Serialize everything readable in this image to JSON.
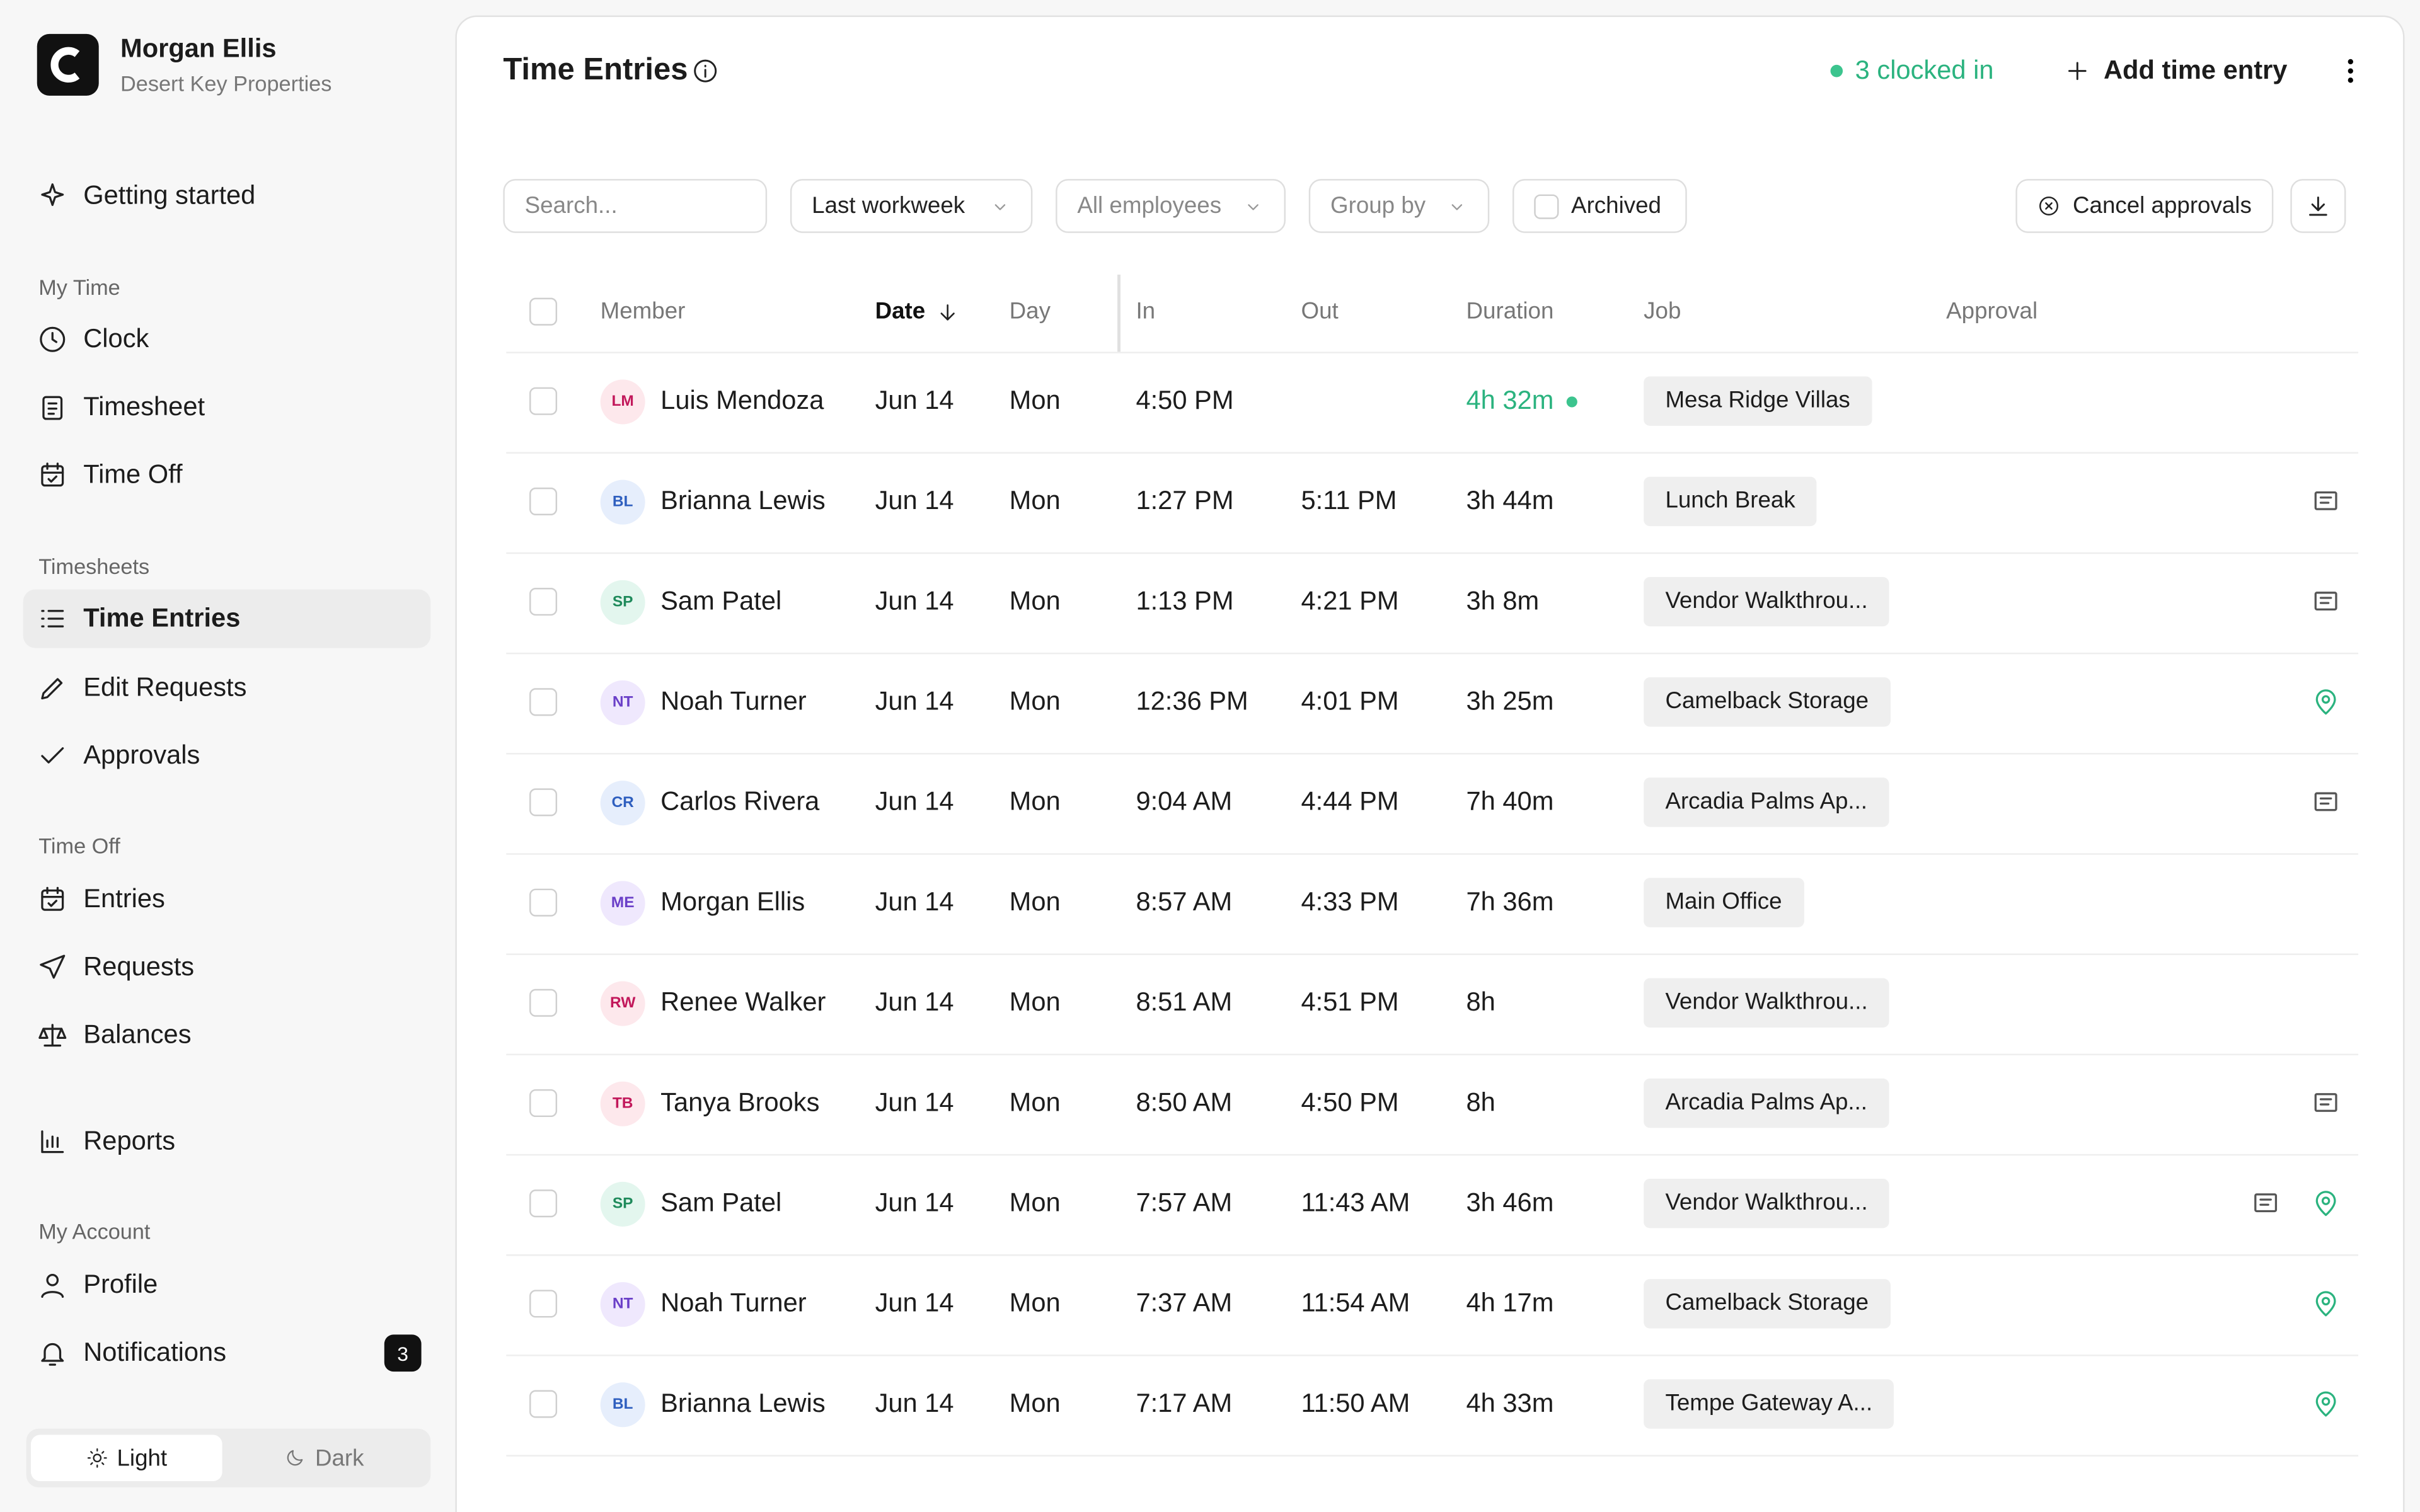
{
  "sidebar": {
    "user": {
      "name": "Morgan Ellis",
      "company": "Desert Key Properties"
    },
    "groups": [
      {
        "items": [
          {
            "label": "Getting started"
          }
        ]
      },
      {
        "title": "My Time",
        "items": [
          {
            "label": "Clock"
          },
          {
            "label": "Timesheet"
          },
          {
            "label": "Time Off"
          }
        ]
      },
      {
        "title": "Timesheets",
        "items": [
          {
            "label": "Time Entries"
          },
          {
            "label": "Edit Requests"
          },
          {
            "label": "Approvals"
          }
        ]
      },
      {
        "title": "Time Off",
        "items": [
          {
            "label": "Entries"
          },
          {
            "label": "Requests"
          },
          {
            "label": "Balances"
          }
        ]
      },
      {
        "items": [
          {
            "label": "Reports"
          }
        ]
      },
      {
        "title": "My Account",
        "items": [
          {
            "label": "Profile"
          },
          {
            "label": "Notifications",
            "badge": 3
          }
        ]
      }
    ],
    "theme": {
      "light": "Light",
      "dark": "Dark"
    }
  },
  "header": {
    "title": "Time Entries",
    "clocked_in": "3 clocked in",
    "add": "Add time entry"
  },
  "filters": {
    "search": "Search...",
    "range": "Last workweek",
    "employees": "All employees",
    "group": "Group by",
    "archived": "Archived",
    "cancel": "Cancel approvals"
  },
  "table": {
    "columns": [
      "Member",
      "Date",
      "Day",
      "In",
      "Out",
      "Duration",
      "Job",
      "Approval"
    ],
    "rows": [
      {
        "initials": "LM",
        "member": "Luis Mendoza",
        "date": "Jun 14",
        "day": "Mon",
        "in": "4:50 PM",
        "out": null,
        "duration": "4h 32m",
        "job": "Mesa Ridge Villas"
      },
      {
        "initials": "BL",
        "member": "Brianna Lewis",
        "date": "Jun 14",
        "day": "Mon",
        "in": "1:27 PM",
        "out": "5:11 PM",
        "duration": "3h 44m",
        "job": "Lunch Break"
      },
      {
        "initials": "SP",
        "member": "Sam Patel",
        "date": "Jun 14",
        "day": "Mon",
        "in": "1:13 PM",
        "out": "4:21 PM",
        "duration": "3h 8m",
        "job": "Vendor Walkthrou..."
      },
      {
        "initials": "NT",
        "member": "Noah Turner",
        "date": "Jun 14",
        "day": "Mon",
        "in": "12:36 PM",
        "out": "4:01 PM",
        "duration": "3h 25m",
        "job": "Camelback Storage"
      },
      {
        "initials": "CR",
        "member": "Carlos Rivera",
        "date": "Jun 14",
        "day": "Mon",
        "in": "9:04 AM",
        "out": "4:44 PM",
        "duration": "7h 40m",
        "job": "Arcadia Palms Ap..."
      },
      {
        "initials": "ME",
        "member": "Morgan Ellis",
        "date": "Jun 14",
        "day": "Mon",
        "in": "8:57 AM",
        "out": "4:33 PM",
        "duration": "7h 36m",
        "job": "Main Office"
      },
      {
        "initials": "RW",
        "member": "Renee Walker",
        "date": "Jun 14",
        "day": "Mon",
        "in": "8:51 AM",
        "out": "4:51 PM",
        "duration": "8h",
        "job": "Vendor Walkthrou..."
      },
      {
        "initials": "TB",
        "member": "Tanya Brooks",
        "date": "Jun 14",
        "day": "Mon",
        "in": "8:50 AM",
        "out": "4:50 PM",
        "duration": "8h",
        "job": "Arcadia Palms Ap..."
      },
      {
        "initials": "SP",
        "member": "Sam Patel",
        "date": "Jun 14",
        "day": "Mon",
        "in": "7:57 AM",
        "out": "11:43 AM",
        "duration": "3h 46m",
        "job": "Vendor Walkthrou..."
      },
      {
        "initials": "NT",
        "member": "Noah Turner",
        "date": "Jun 14",
        "day": "Mon",
        "in": "7:37 AM",
        "out": "11:54 AM",
        "duration": "4h 17m",
        "job": "Camelback Storage"
      },
      {
        "initials": "BL",
        "member": "Brianna Lewis",
        "date": "Jun 14",
        "day": "Mon",
        "in": "7:17 AM",
        "out": "11:50 AM",
        "duration": "4h 33m",
        "job": "Tempe Gateway A..."
      }
    ]
  }
}
